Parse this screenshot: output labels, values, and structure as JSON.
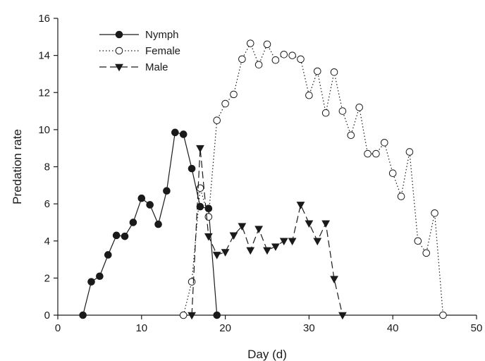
{
  "chart_data": {
    "type": "line",
    "title": "",
    "xlabel": "Day (d)",
    "ylabel": "Predation rate",
    "xlim": [
      0,
      50
    ],
    "ylim": [
      0,
      16
    ],
    "xticks": [
      0,
      10,
      20,
      30,
      40,
      50
    ],
    "yticks": [
      0,
      2,
      4,
      6,
      8,
      10,
      12,
      14,
      16
    ],
    "grid": false,
    "legend_position": "top-left",
    "series": [
      {
        "name": "Nymph",
        "marker": "filled-circle",
        "line_style": "solid",
        "color": "#1a1a1a",
        "points": [
          [
            3,
            0
          ],
          [
            4,
            1.8
          ],
          [
            5,
            2.1
          ],
          [
            6,
            3.25
          ],
          [
            7,
            4.3
          ],
          [
            8,
            4.25
          ],
          [
            9,
            5.0
          ],
          [
            10,
            6.3
          ],
          [
            11,
            5.95
          ],
          [
            12,
            4.9
          ],
          [
            13,
            6.7
          ],
          [
            14,
            9.85
          ],
          [
            15,
            9.75
          ],
          [
            16,
            7.9
          ],
          [
            17,
            5.85
          ],
          [
            18,
            5.75
          ],
          [
            19,
            0
          ]
        ]
      },
      {
        "name": "Female",
        "marker": "open-circle",
        "line_style": "dotted",
        "color": "#1a1a1a",
        "points": [
          [
            15,
            0
          ],
          [
            16,
            1.8
          ],
          [
            17,
            6.85
          ],
          [
            18,
            5.3
          ],
          [
            19,
            10.5
          ],
          [
            20,
            11.4
          ],
          [
            21,
            11.9
          ],
          [
            22,
            13.8
          ],
          [
            23,
            14.65
          ],
          [
            24,
            13.5
          ],
          [
            25,
            14.6
          ],
          [
            26,
            13.75
          ],
          [
            27,
            14.05
          ],
          [
            28,
            14.0
          ],
          [
            29,
            13.8
          ],
          [
            30,
            11.85
          ],
          [
            31,
            13.15
          ],
          [
            32,
            10.9
          ],
          [
            33,
            13.1
          ],
          [
            34,
            11.0
          ],
          [
            35,
            9.7
          ],
          [
            36,
            11.2
          ],
          [
            37,
            8.7
          ],
          [
            38,
            8.7
          ],
          [
            39,
            9.3
          ],
          [
            40,
            7.65
          ],
          [
            41,
            6.4
          ],
          [
            42,
            8.8
          ],
          [
            43,
            4.0
          ],
          [
            44,
            3.35
          ],
          [
            45,
            5.5
          ],
          [
            46,
            0
          ]
        ]
      },
      {
        "name": "Male",
        "marker": "filled-triangle-down",
        "line_style": "dashed",
        "color": "#1a1a1a",
        "points": [
          [
            16,
            0
          ],
          [
            17,
            9.0
          ],
          [
            18,
            4.25
          ],
          [
            19,
            3.25
          ],
          [
            20,
            3.4
          ],
          [
            21,
            4.3
          ],
          [
            22,
            4.8
          ],
          [
            23,
            3.5
          ],
          [
            24,
            4.65
          ],
          [
            25,
            3.5
          ],
          [
            26,
            3.7
          ],
          [
            27,
            4.0
          ],
          [
            28,
            4.0
          ],
          [
            29,
            5.95
          ],
          [
            30,
            4.95
          ],
          [
            31,
            4.0
          ],
          [
            32,
            4.95
          ],
          [
            33,
            1.95
          ],
          [
            34,
            0
          ]
        ]
      }
    ]
  }
}
